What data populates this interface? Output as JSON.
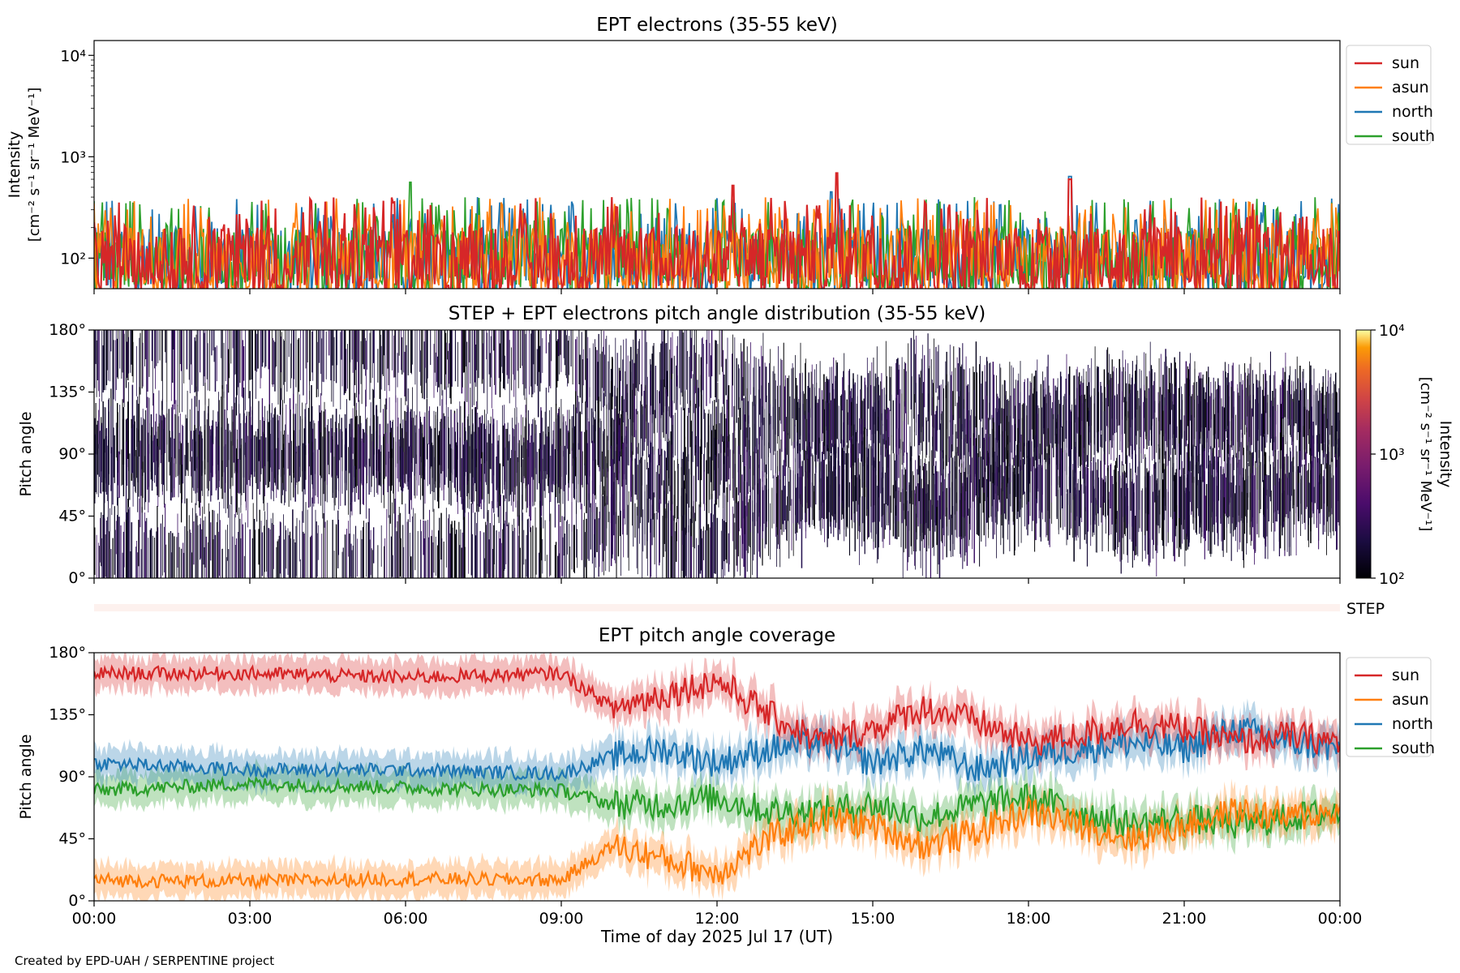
{
  "figure": {
    "credit": "Created by EPD-UAH / SERPENTINE project",
    "xlabel": "Time of day 2025 Jul 17 (UT)",
    "x_ticks": [
      "00:00",
      "03:00",
      "06:00",
      "09:00",
      "12:00",
      "15:00",
      "18:00",
      "21:00",
      "00:00"
    ],
    "series_colors": {
      "sun": "#d62728",
      "asun": "#ff7f0e",
      "north": "#1f77b4",
      "south": "#2ca02c"
    }
  },
  "chart_data": [
    {
      "id": "intensity",
      "type": "line",
      "title": "EPT electrons (35-55 keV)",
      "ylabel": "Intensity",
      "ylabel_units": "[cm⁻² s⁻¹ sr⁻¹ MeV⁻¹]",
      "yscale": "log",
      "ylim": [
        50,
        14000
      ],
      "y_ticks": [
        {
          "value": 100,
          "label": "10²"
        },
        {
          "value": 1000,
          "label": "10³"
        },
        {
          "value": 10000,
          "label": "10⁴"
        }
      ],
      "x_range_hours": [
        0,
        24
      ],
      "legend_position": "outside-right",
      "series": [
        {
          "name": "sun",
          "color": "#d62728",
          "baseline": 120,
          "variation": "noisy 50-450",
          "peaks": [
            {
              "t": 14.3,
              "v": 690
            },
            {
              "t": 12.3,
              "v": 520
            },
            {
              "t": 18.8,
              "v": 600
            }
          ]
        },
        {
          "name": "asun",
          "color": "#ff7f0e",
          "baseline": 90,
          "variation": "noisy 50-350"
        },
        {
          "name": "north",
          "color": "#1f77b4",
          "baseline": 100,
          "variation": "noisy 50-400",
          "peaks": [
            {
              "t": 18.8,
              "v": 640
            },
            {
              "t": 14.2,
              "v": 450
            }
          ]
        },
        {
          "name": "south",
          "color": "#2ca02c",
          "baseline": 100,
          "variation": "noisy 50-420",
          "peaks": [
            {
              "t": 6.1,
              "v": 560
            }
          ]
        }
      ]
    },
    {
      "id": "pad",
      "type": "heatmap",
      "title": "STEP + EPT electrons pitch angle distribution (35-55 keV)",
      "ylabel": "Pitch angle",
      "ylim": [
        0,
        180
      ],
      "y_ticks": [
        "0°",
        "45°",
        "90°",
        "135°",
        "180°"
      ],
      "x_range_hours": [
        0,
        24
      ],
      "colorbar": {
        "label": "Intensity",
        "units": "[cm⁻² s⁻¹ sr⁻¹ MeV⁻¹]",
        "scale": "log",
        "range": [
          100,
          10000
        ],
        "ticks": [
          "10²",
          "10³",
          "10⁴"
        ],
        "colormap": "inferno"
      },
      "step_label": "STEP"
    },
    {
      "id": "coverage",
      "type": "line",
      "title": "EPT pitch angle coverage",
      "ylabel": "Pitch angle",
      "ylim": [
        0,
        180
      ],
      "y_ticks": [
        "0°",
        "45°",
        "90°",
        "135°",
        "180°"
      ],
      "x_range_hours": [
        0,
        24
      ],
      "legend_position": "outside-right",
      "series": [
        {
          "name": "sun",
          "color": "#d62728",
          "knots": [
            [
              0,
              165
            ],
            [
              3,
              165
            ],
            [
              6,
              162
            ],
            [
              9,
              165
            ],
            [
              10,
              140
            ],
            [
              11,
              150
            ],
            [
              12,
              160
            ],
            [
              13,
              135
            ],
            [
              14,
              115
            ],
            [
              15,
              125
            ],
            [
              16,
              140
            ],
            [
              17,
              130
            ],
            [
              18,
              115
            ],
            [
              19,
              120
            ],
            [
              20,
              130
            ],
            [
              21,
              125
            ],
            [
              22,
              115
            ],
            [
              23,
              120
            ],
            [
              24,
              115
            ]
          ]
        },
        {
          "name": "asun",
          "color": "#ff7f0e",
          "knots": [
            [
              0,
              15
            ],
            [
              3,
              14
            ],
            [
              6,
              16
            ],
            [
              9,
              15
            ],
            [
              10,
              40
            ],
            [
              11,
              30
            ],
            [
              12,
              20
            ],
            [
              13,
              45
            ],
            [
              14,
              60
            ],
            [
              15,
              55
            ],
            [
              16,
              40
            ],
            [
              17,
              50
            ],
            [
              18,
              65
            ],
            [
              19,
              55
            ],
            [
              20,
              45
            ],
            [
              21,
              55
            ],
            [
              22,
              65
            ],
            [
              23,
              60
            ],
            [
              24,
              65
            ]
          ]
        },
        {
          "name": "north",
          "color": "#1f77b4",
          "knots": [
            [
              0,
              100
            ],
            [
              3,
              95
            ],
            [
              6,
              95
            ],
            [
              9,
              92
            ],
            [
              10,
              105
            ],
            [
              11,
              110
            ],
            [
              12,
              100
            ],
            [
              13,
              110
            ],
            [
              14,
              115
            ],
            [
              15,
              100
            ],
            [
              16,
              110
            ],
            [
              17,
              95
            ],
            [
              18,
              105
            ],
            [
              19,
              110
            ],
            [
              20,
              115
            ],
            [
              21,
              110
            ],
            [
              22,
              125
            ],
            [
              23,
              115
            ],
            [
              24,
              110
            ]
          ]
        },
        {
          "name": "south",
          "color": "#2ca02c",
          "knots": [
            [
              0,
              80
            ],
            [
              3,
              85
            ],
            [
              6,
              82
            ],
            [
              9,
              80
            ],
            [
              10,
              70
            ],
            [
              11,
              70
            ],
            [
              12,
              75
            ],
            [
              13,
              65
            ],
            [
              14,
              65
            ],
            [
              15,
              70
            ],
            [
              16,
              60
            ],
            [
              17,
              70
            ],
            [
              18,
              75
            ],
            [
              19,
              65
            ],
            [
              20,
              55
            ],
            [
              21,
              60
            ],
            [
              22,
              55
            ],
            [
              23,
              60
            ],
            [
              24,
              65
            ]
          ]
        }
      ]
    }
  ]
}
